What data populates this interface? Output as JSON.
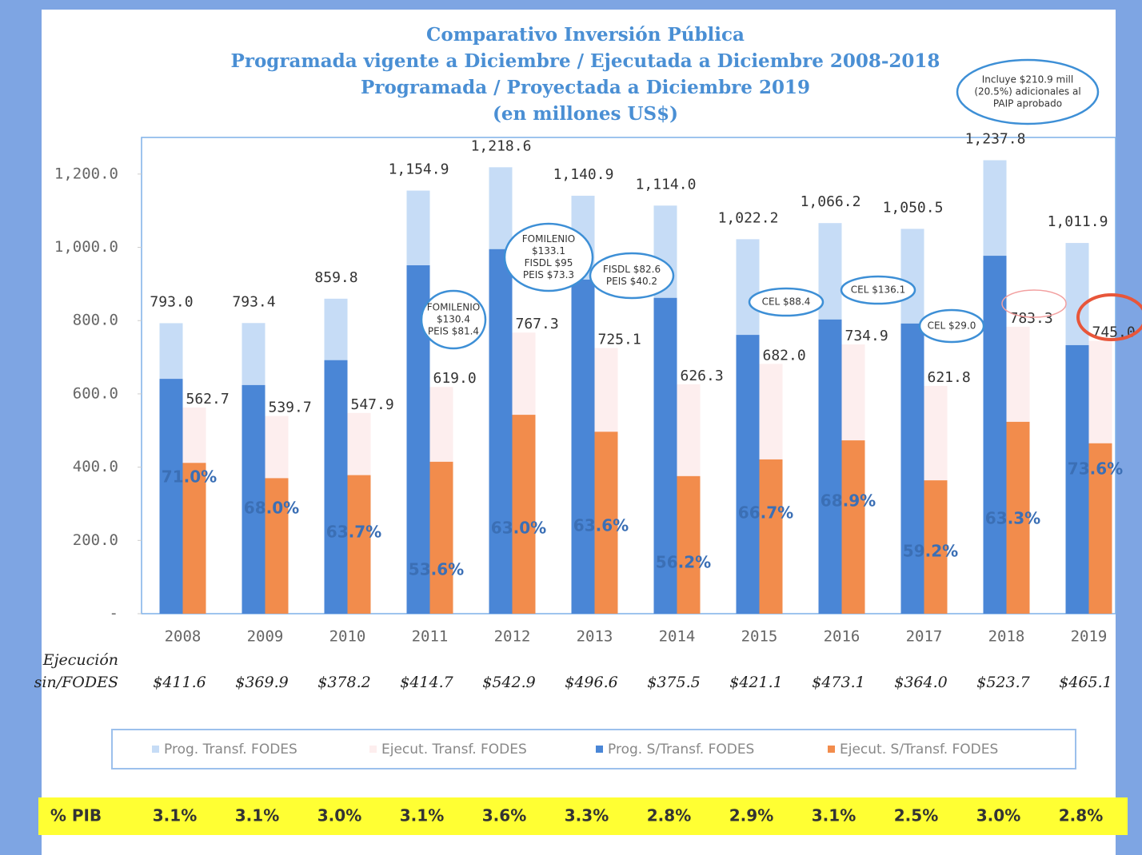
{
  "chart_data": {
    "type": "bar",
    "title": [
      "Comparativo Inversión Pública",
      "Programada vigente a Diciembre / Ejecutada a Diciembre 2008-2018",
      "Programada / Proyectada a Diciembre 2019",
      "(en millones US$)"
    ],
    "categories": [
      "2008",
      "2009",
      "2010",
      "2011",
      "2012",
      "2013",
      "2014",
      "2015",
      "2016",
      "2017",
      "2018",
      "2019"
    ],
    "ylim": [
      0,
      1300
    ],
    "yticks": [
      {
        "value": 0,
        "label": "-"
      },
      {
        "value": 200,
        "label": "200.0"
      },
      {
        "value": 400,
        "label": "400.0"
      },
      {
        "value": 600,
        "label": "600.0"
      },
      {
        "value": 800,
        "label": "800.0"
      },
      {
        "value": 1000,
        "label": "1,000.0"
      },
      {
        "value": 1200,
        "label": "1,200.0"
      }
    ],
    "series": [
      {
        "name": "Prog. Transf. FODES",
        "color": "#c6dcf6",
        "values": [
          793.0,
          793.4,
          859.8,
          1154.9,
          1218.6,
          1140.9,
          1114.0,
          1022.2,
          1066.2,
          1050.5,
          1237.8,
          1011.9
        ],
        "value_labels": [
          "793.0",
          "793.4",
          "859.8",
          "1,154.9",
          "1,218.6",
          "1,140.9",
          "1,114.0",
          "1,022.2",
          "1,066.2",
          "1,050.5",
          "1,237.8",
          "1,011.9"
        ]
      },
      {
        "name": "Ejecut. Transf. FODES",
        "color": "#fdeeee",
        "values": [
          562.7,
          539.7,
          547.9,
          619.0,
          767.3,
          725.1,
          626.3,
          682.0,
          734.9,
          621.8,
          783.3,
          745.0
        ],
        "value_labels": [
          "562.7",
          "539.7",
          "547.9",
          "619.0",
          "767.3",
          "725.1",
          "626.3",
          "682.0",
          "734.9",
          "621.8",
          "783.3",
          "745.0"
        ]
      },
      {
        "name": "Prog. S/Transf. FODES",
        "color": "#4a86d6",
        "values": [
          641,
          624,
          692,
          951,
          995,
          912,
          862,
          761,
          803,
          792,
          977,
          733
        ]
      },
      {
        "name": "Ejecut. S/Transf. FODES",
        "color": "#f28c4c",
        "values": [
          411.6,
          369.9,
          378.2,
          414.7,
          542.9,
          496.6,
          375.5,
          421.1,
          473.1,
          364.0,
          523.7,
          465.1
        ],
        "value_labels": [
          "$411.6",
          "$369.9",
          "$378.2",
          "$414.7",
          "$542.9",
          "$496.6",
          "$375.5",
          "$421.1",
          "$473.1",
          "$364.0",
          "$523.7",
          "$465.1"
        ]
      }
    ],
    "percent_labels": [
      "71.0%",
      "68.0%",
      "63.7%",
      "53.6%",
      "63.0%",
      "63.6%",
      "56.2%",
      "66.7%",
      "68.9%",
      "59.2%",
      "63.3%",
      "73.6%"
    ],
    "execution_row_label": [
      "Ejecución",
      "sin/FODES"
    ],
    "pib_label": "% PIB",
    "pib": [
      "3.1%",
      "3.1%",
      "3.0%",
      "3.1%",
      "3.6%",
      "3.3%",
      "2.8%",
      "2.9%",
      "3.1%",
      "2.5%",
      "3.0%",
      "2.8%"
    ],
    "annotations": [
      [
        "FOMILENIO",
        "$130.4",
        "PEIS $81.4"
      ],
      [
        "FOMILENIO",
        "$133.1",
        "FISDL $95",
        "PEIS $73.3"
      ],
      [
        "FISDL $82.6",
        "PEIS $40.2"
      ],
      [
        "CEL $88.4"
      ],
      [
        "CEL $136.1"
      ],
      [
        "CEL $29.0"
      ],
      [
        "Incluye $210.9 mill",
        "(20.5%) adicionales al",
        "PAIP aprobado"
      ]
    ]
  }
}
